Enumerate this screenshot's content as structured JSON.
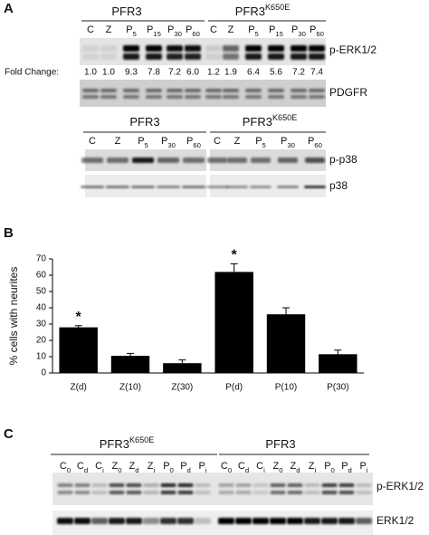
{
  "panel_a": {
    "label": "A",
    "top_groups": [
      {
        "name": "PFR3"
      },
      {
        "name": "PFR3",
        "sup": "K650E"
      }
    ],
    "top_lanes": [
      [
        {
          "main": "C"
        },
        {
          "main": "Z"
        },
        {
          "main": "P",
          "sub": "5"
        },
        {
          "main": "P",
          "sub": "15"
        },
        {
          "main": "P",
          "sub": "30"
        },
        {
          "main": "P",
          "sub": "60"
        }
      ],
      [
        {
          "main": "C"
        },
        {
          "main": "Z"
        },
        {
          "main": "P",
          "sub": "5"
        },
        {
          "main": "P",
          "sub": "15"
        },
        {
          "main": "P",
          "sub": "30"
        },
        {
          "main": "P",
          "sub": "60"
        }
      ]
    ],
    "fold_change_label": "Fold Change:",
    "fold_change": [
      "1.0",
      "1.0",
      "9.3",
      "7.8",
      "7.2",
      "6.0",
      "1.2",
      "1.9",
      "6.4",
      "5.6",
      "7.2",
      "7.4"
    ],
    "top_rows": [
      "p-ERK1/2",
      "PDGFR"
    ],
    "bottom_groups": [
      {
        "name": "PFR3"
      },
      {
        "name": "PFR3",
        "sup": "K650E"
      }
    ],
    "bottom_lanes": [
      [
        {
          "main": "C"
        },
        {
          "main": "Z"
        },
        {
          "main": "P",
          "sub": "5"
        },
        {
          "main": "P",
          "sub": "30"
        },
        {
          "main": "P",
          "sub": "60"
        }
      ],
      [
        {
          "main": "C"
        },
        {
          "main": "Z"
        },
        {
          "main": "P",
          "sub": "5"
        },
        {
          "main": "P",
          "sub": "30"
        },
        {
          "main": "P",
          "sub": "60"
        }
      ]
    ],
    "bottom_rows": [
      "p-p38",
      "p38"
    ]
  },
  "chart_data": {
    "type": "bar",
    "panel_label": "B",
    "ylabel": "% cells with neurites",
    "categories": [
      "Z(d)",
      "Z(10)",
      "Z(30)",
      "P(d)",
      "P(10)",
      "P(30)"
    ],
    "values": [
      28,
      10.5,
      6,
      62,
      36,
      11.5
    ],
    "errors": [
      1,
      1.5,
      2,
      5,
      4,
      2.5
    ],
    "color": "#000000",
    "ylim": [
      0,
      70
    ],
    "yticks": [
      0,
      10,
      20,
      30,
      40,
      50,
      60,
      70
    ],
    "annotations": [
      {
        "text": "*",
        "category": "Z(d)"
      },
      {
        "text": "*",
        "category": "P(d)"
      }
    ]
  },
  "panel_c": {
    "label": "C",
    "groups": [
      {
        "name": "PFR3",
        "sup": "K650E"
      },
      {
        "name": "PFR3"
      }
    ],
    "lanes": [
      [
        {
          "main": "C",
          "sub": "0"
        },
        {
          "main": "C",
          "sub": "d"
        },
        {
          "main": "C",
          "sub": "i"
        },
        {
          "main": "Z",
          "sub": "0"
        },
        {
          "main": "Z",
          "sub": "d"
        },
        {
          "main": "Z",
          "sub": "i"
        },
        {
          "main": "P",
          "sub": "0"
        },
        {
          "main": "P",
          "sub": "d"
        },
        {
          "main": "P",
          "sub": "i"
        }
      ],
      [
        {
          "main": "C",
          "sub": "0"
        },
        {
          "main": "C",
          "sub": "d"
        },
        {
          "main": "C",
          "sub": "i"
        },
        {
          "main": "Z",
          "sub": "0"
        },
        {
          "main": "Z",
          "sub": "d"
        },
        {
          "main": "Z",
          "sub": "i"
        },
        {
          "main": "P",
          "sub": "0"
        },
        {
          "main": "P",
          "sub": "d"
        },
        {
          "main": "P",
          "sub": "i"
        }
      ]
    ],
    "rows": [
      "p-ERK1/2",
      "ERK1/2"
    ]
  }
}
